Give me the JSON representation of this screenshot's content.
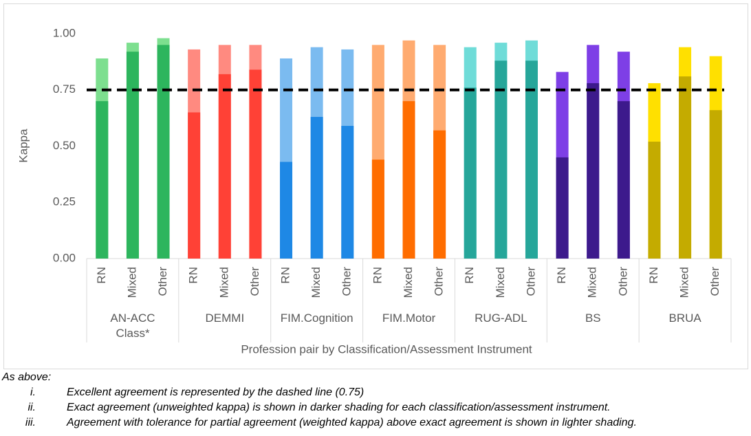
{
  "chart_data": {
    "type": "bar",
    "y_axis_label": "Kappa",
    "x_axis_label": "Profession pair by Classification/Assessment Instrument",
    "ylim": [
      0,
      1
    ],
    "yticks": [
      {
        "value": 0,
        "label": "0.00"
      },
      {
        "value": 0.25,
        "label": "0.25"
      },
      {
        "value": 0.5,
        "label": "0.50"
      },
      {
        "value": 0.75,
        "label": "0.75"
      },
      {
        "value": 1,
        "label": "1.00"
      }
    ],
    "grid": false,
    "reference_line": 0.75,
    "groups": [
      {
        "name": "AN-ACC\nClass*",
        "dark_color": "#2db55d",
        "light_color": "#7ddf8f",
        "categories": [
          "RN",
          "Mixed",
          "Other"
        ],
        "exact": [
          0.7,
          0.92,
          0.95
        ],
        "weighted": [
          0.89,
          0.96,
          0.98
        ]
      },
      {
        "name": "DEMMI",
        "dark_color": "#ff4136",
        "light_color": "#ff8a80",
        "categories": [
          "RN",
          "Mixed",
          "Other"
        ],
        "exact": [
          0.65,
          0.82,
          0.84
        ],
        "weighted": [
          0.93,
          0.95,
          0.95
        ]
      },
      {
        "name": "FIM.Cognition",
        "dark_color": "#1e88e5",
        "light_color": "#7bbbf0",
        "categories": [
          "RN",
          "Mixed",
          "Other"
        ],
        "exact": [
          0.43,
          0.63,
          0.59
        ],
        "weighted": [
          0.89,
          0.94,
          0.93
        ]
      },
      {
        "name": "FIM.Motor",
        "dark_color": "#ff6d00",
        "light_color": "#ffab70",
        "categories": [
          "RN",
          "Mixed",
          "Other"
        ],
        "exact": [
          0.44,
          0.7,
          0.57
        ],
        "weighted": [
          0.95,
          0.97,
          0.95
        ]
      },
      {
        "name": "RUG-ADL",
        "dark_color": "#26a69a",
        "light_color": "#6fdcd8",
        "categories": [
          "RN",
          "Mixed",
          "Other"
        ],
        "exact": [
          0.76,
          0.88,
          0.88
        ],
        "weighted": [
          0.94,
          0.96,
          0.97
        ]
      },
      {
        "name": "BS",
        "dark_color": "#3d1a8c",
        "light_color": "#7e3fe6",
        "categories": [
          "RN",
          "Mixed",
          "Other"
        ],
        "exact": [
          0.45,
          0.78,
          0.7
        ],
        "weighted": [
          0.83,
          0.95,
          0.92
        ]
      },
      {
        "name": "BRUA",
        "dark_color": "#c4ab00",
        "light_color": "#ffe000",
        "categories": [
          "RN",
          "Mixed",
          "Other"
        ],
        "exact": [
          0.52,
          0.81,
          0.66
        ],
        "weighted": [
          0.78,
          0.94,
          0.9
        ]
      }
    ]
  },
  "notes": {
    "intro": "As above:",
    "items": [
      {
        "numeral": "i.",
        "text": "Excellent agreement is represented by the dashed line (0.75)"
      },
      {
        "numeral": "ii.",
        "text": "Exact agreement (unweighted kappa) is shown in darker shading for each classification/assessment instrument."
      },
      {
        "numeral": "iii.",
        "text": "Agreement with tolerance for partial agreement (weighted kappa) above exact agreement is shown in lighter shading."
      }
    ]
  }
}
